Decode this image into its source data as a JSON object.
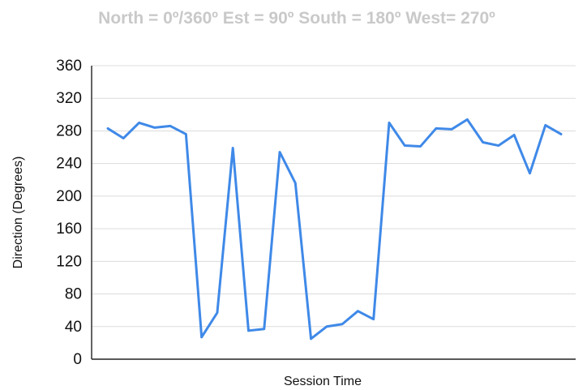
{
  "chart_data": {
    "type": "line",
    "title": "North = 0º/360º Est = 90º South = 180º West= 270º",
    "xlabel": "Session Time",
    "ylabel": "Direction (Degrees)",
    "ylim": [
      0,
      360
    ],
    "yticks": [
      0,
      40,
      80,
      120,
      160,
      200,
      240,
      280,
      320,
      360
    ],
    "grid": true,
    "legend": "none",
    "colors": {
      "line": "#3f89e8",
      "grid": "#dcdcdc",
      "title": "#c9c9c9",
      "axis": "#222222"
    },
    "series": [
      {
        "values": [
          283,
          271,
          290,
          284,
          286,
          276,
          27,
          57,
          259,
          35,
          37,
          254,
          216,
          25,
          40,
          43,
          59,
          49,
          290,
          262,
          261,
          283,
          282,
          294,
          266,
          262,
          275,
          228,
          287,
          276
        ]
      }
    ]
  }
}
